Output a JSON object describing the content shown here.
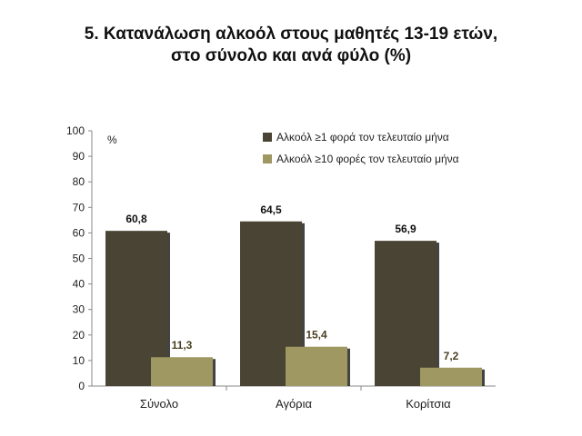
{
  "title": {
    "line1": "5. Κατανάλωση αλκοόλ στους μαθητές 13-19 ετών,",
    "line2": "στο σύνολο και ανά φύλο (%)"
  },
  "colors": {
    "series1": "#4a4434",
    "series2": "#a09862",
    "label1": "#111111",
    "label2": "#4a4020"
  },
  "chart_data": {
    "type": "bar",
    "categories": [
      "Σύνολο",
      "Αγόρια",
      "Κορίτσια"
    ],
    "series": [
      {
        "name": "Αλκοόλ ≥1 φορά τον τελευταίο μήνα",
        "values": [
          60.8,
          64.5,
          56.9
        ],
        "labels": [
          "60,8",
          "64,5",
          "56,9"
        ]
      },
      {
        "name": "Αλκοόλ ≥10 φορές τον τελευταίο μήνα",
        "values": [
          11.3,
          15.4,
          7.2
        ],
        "labels": [
          "11,3",
          "15,4",
          "7,2"
        ]
      }
    ],
    "ylabel": "%",
    "ylim": [
      0,
      100
    ],
    "yticks": [
      0,
      10,
      20,
      30,
      40,
      50,
      60,
      70,
      80,
      90,
      100
    ],
    "grid": false,
    "legend": "top-right"
  }
}
